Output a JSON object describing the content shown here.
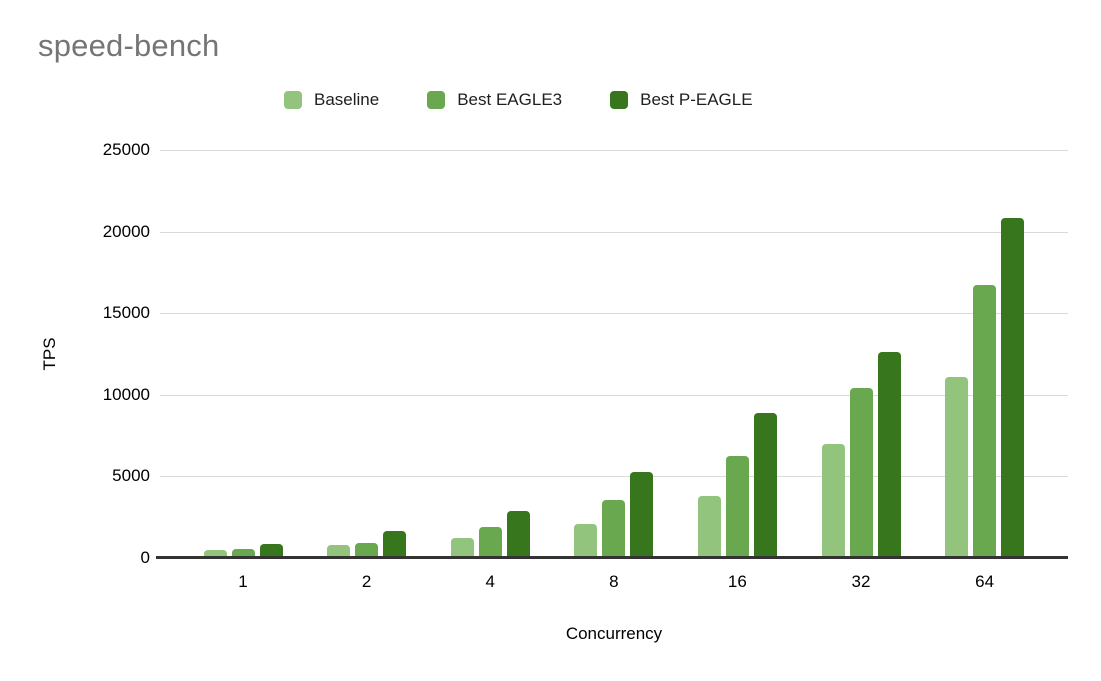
{
  "title": "speed-bench",
  "chart_data": {
    "type": "bar",
    "title": "speed-bench",
    "xlabel": "Concurrency",
    "ylabel": "TPS",
    "categories": [
      "1",
      "2",
      "4",
      "8",
      "16",
      "32",
      "64"
    ],
    "series": [
      {
        "name": "Baseline",
        "color": "#93c47d",
        "values": [
          500,
          820,
          1240,
          2100,
          3800,
          7000,
          11100
        ]
      },
      {
        "name": "Best EAGLE3",
        "color": "#6aa84f",
        "values": [
          550,
          920,
          1900,
          3550,
          6250,
          10400,
          16700
        ]
      },
      {
        "name": "Best P-EAGLE",
        "color": "#38761d",
        "values": [
          850,
          1630,
          2900,
          5300,
          8900,
          12650,
          20850
        ]
      }
    ],
    "ylim": [
      0,
      25000
    ],
    "yticks": [
      0,
      5000,
      10000,
      15000,
      20000,
      25000
    ],
    "grid": true,
    "legend_position": "top"
  },
  "colors": {
    "title_text": "#757575",
    "axis_line": "#333333",
    "gridline": "#dadada",
    "label_text": "#000000",
    "background": "#ffffff"
  }
}
